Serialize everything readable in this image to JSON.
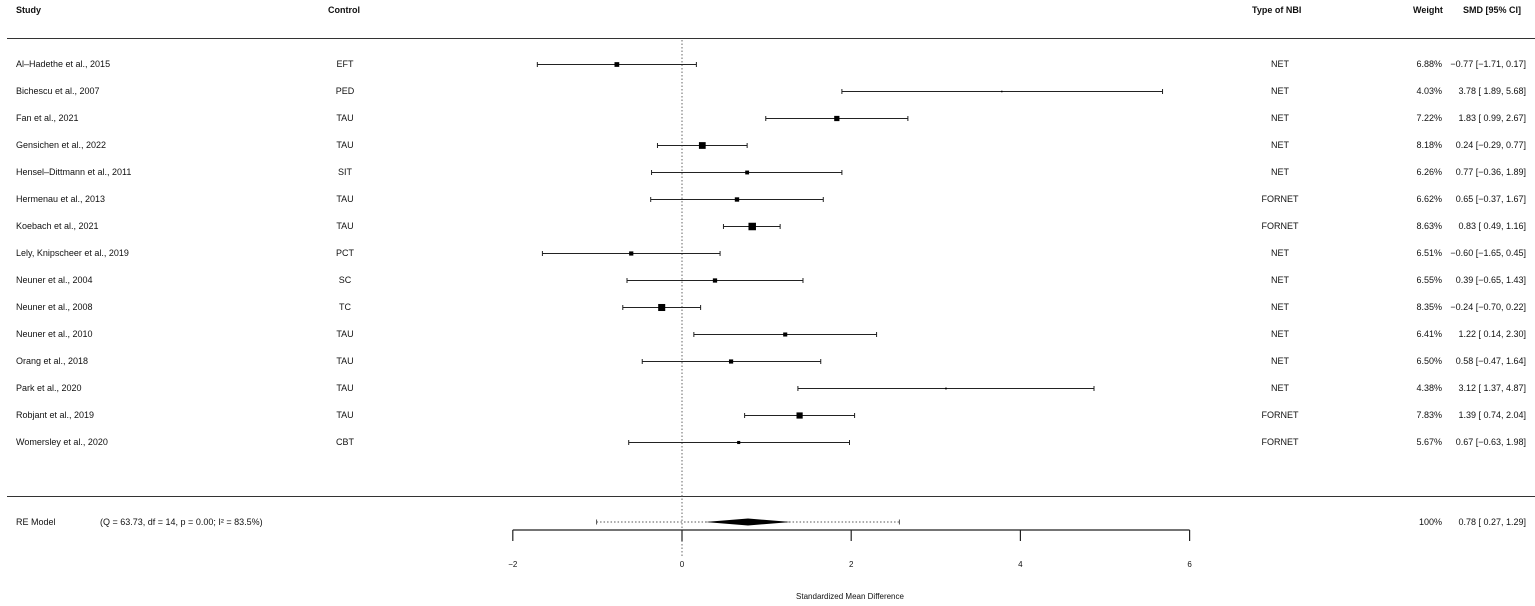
{
  "headers": {
    "study": "Study",
    "control": "Control",
    "nbi": "Type of NBI",
    "weight": "Weight",
    "smd": "SMD [95% CI]"
  },
  "rows": [
    {
      "study": "Al–Hadethe et al., 2015",
      "control": "EFT",
      "nbi": "NET",
      "weight": "6.88%",
      "smd": "−0.77 [−1.71, 0.17]"
    },
    {
      "study": "Bichescu et al., 2007",
      "control": "PED",
      "nbi": "NET",
      "weight": "4.03%",
      "smd": "3.78 [ 1.89, 5.68]"
    },
    {
      "study": "Fan et al., 2021",
      "control": "TAU",
      "nbi": "NET",
      "weight": "7.22%",
      "smd": "1.83 [ 0.99, 2.67]"
    },
    {
      "study": "Gensichen et al., 2022",
      "control": "TAU",
      "nbi": "NET",
      "weight": "8.18%",
      "smd": "0.24 [−0.29, 0.77]"
    },
    {
      "study": "Hensel–Dittmann et al., 2011",
      "control": "SIT",
      "nbi": "NET",
      "weight": "6.26%",
      "smd": "0.77 [−0.36, 1.89]"
    },
    {
      "study": "Hermenau et al., 2013",
      "control": "TAU",
      "nbi": "FORNET",
      "weight": "6.62%",
      "smd": "0.65 [−0.37, 1.67]"
    },
    {
      "study": "Koebach et al., 2021",
      "control": "TAU",
      "nbi": "FORNET",
      "weight": "8.63%",
      "smd": "0.83 [ 0.49, 1.16]"
    },
    {
      "study": "Lely, Knipscheer et al., 2019",
      "control": "PCT",
      "nbi": "NET",
      "weight": "6.51%",
      "smd": "−0.60 [−1.65, 0.45]"
    },
    {
      "study": "Neuner et al., 2004",
      "control": "SC",
      "nbi": "NET",
      "weight": "6.55%",
      "smd": "0.39 [−0.65, 1.43]"
    },
    {
      "study": "Neuner et al., 2008",
      "control": "TC",
      "nbi": "NET",
      "weight": "8.35%",
      "smd": "−0.24 [−0.70, 0.22]"
    },
    {
      "study": "Neuner et al., 2010",
      "control": "TAU",
      "nbi": "NET",
      "weight": "6.41%",
      "smd": "1.22 [ 0.14, 2.30]"
    },
    {
      "study": "Orang et al., 2018",
      "control": "TAU",
      "nbi": "NET",
      "weight": "6.50%",
      "smd": "0.58 [−0.47, 1.64]"
    },
    {
      "study": "Park et al., 2020",
      "control": "TAU",
      "nbi": "NET",
      "weight": "4.38%",
      "smd": "3.12 [ 1.37, 4.87]"
    },
    {
      "study": "Robjant et al., 2019",
      "control": "TAU",
      "nbi": "FORNET",
      "weight": "7.83%",
      "smd": "1.39 [ 0.74, 2.04]"
    },
    {
      "study": "Womersley et al., 2020",
      "control": "CBT",
      "nbi": "FORNET",
      "weight": "5.67%",
      "smd": "0.67 [−0.63, 1.98]"
    }
  ],
  "summary": {
    "label": "RE Model",
    "stats": "(Q = 63.73, df = 14, p = 0.00; I² = 83.5%)",
    "weight": "100%",
    "smd": "0.78 [ 0.27, 1.29]"
  },
  "axis": {
    "xlabel": "Standardized Mean Difference",
    "ticks": [
      "−2",
      "0",
      "2",
      "4",
      "6"
    ]
  },
  "chart_data": {
    "type": "forest",
    "title": "",
    "xlabel": "Standardized Mean Difference",
    "xlim": [
      -2,
      6
    ],
    "xticks": [
      -2,
      0,
      2,
      4,
      6
    ],
    "reference_line": 0,
    "studies": [
      {
        "name": "Al–Hadethe et al., 2015",
        "est": -0.77,
        "lo": -1.71,
        "hi": 0.17,
        "weight": 6.88
      },
      {
        "name": "Bichescu et al., 2007",
        "est": 3.78,
        "lo": 1.89,
        "hi": 5.68,
        "weight": 4.03
      },
      {
        "name": "Fan et al., 2021",
        "est": 1.83,
        "lo": 0.99,
        "hi": 2.67,
        "weight": 7.22
      },
      {
        "name": "Gensichen et al., 2022",
        "est": 0.24,
        "lo": -0.29,
        "hi": 0.77,
        "weight": 8.18
      },
      {
        "name": "Hensel–Dittmann et al., 2011",
        "est": 0.77,
        "lo": -0.36,
        "hi": 1.89,
        "weight": 6.26
      },
      {
        "name": "Hermenau et al., 2013",
        "est": 0.65,
        "lo": -0.37,
        "hi": 1.67,
        "weight": 6.62
      },
      {
        "name": "Koebach et al., 2021",
        "est": 0.83,
        "lo": 0.49,
        "hi": 1.16,
        "weight": 8.63
      },
      {
        "name": "Lely, Knipscheer et al., 2019",
        "est": -0.6,
        "lo": -1.65,
        "hi": 0.45,
        "weight": 6.51
      },
      {
        "name": "Neuner et al., 2004",
        "est": 0.39,
        "lo": -0.65,
        "hi": 1.43,
        "weight": 6.55
      },
      {
        "name": "Neuner et al., 2008",
        "est": -0.24,
        "lo": -0.7,
        "hi": 0.22,
        "weight": 8.35
      },
      {
        "name": "Neuner et al., 2010",
        "est": 1.22,
        "lo": 0.14,
        "hi": 2.3,
        "weight": 6.41
      },
      {
        "name": "Orang et al., 2018",
        "est": 0.58,
        "lo": -0.47,
        "hi": 1.64,
        "weight": 6.5
      },
      {
        "name": "Park et al., 2020",
        "est": 3.12,
        "lo": 1.37,
        "hi": 4.87,
        "weight": 4.38
      },
      {
        "name": "Robjant et al., 2019",
        "est": 1.39,
        "lo": 0.74,
        "hi": 2.04,
        "weight": 7.83
      },
      {
        "name": "Womersley et al., 2020",
        "est": 0.67,
        "lo": -0.63,
        "hi": 1.98,
        "weight": 5.67
      }
    ],
    "pooled": {
      "label": "RE Model",
      "est": 0.78,
      "lo": 0.27,
      "hi": 1.29,
      "pi_lo": -1.01,
      "pi_hi": 2.57,
      "Q": 63.73,
      "df": 14,
      "p": 0.0,
      "I2": 83.5
    }
  }
}
